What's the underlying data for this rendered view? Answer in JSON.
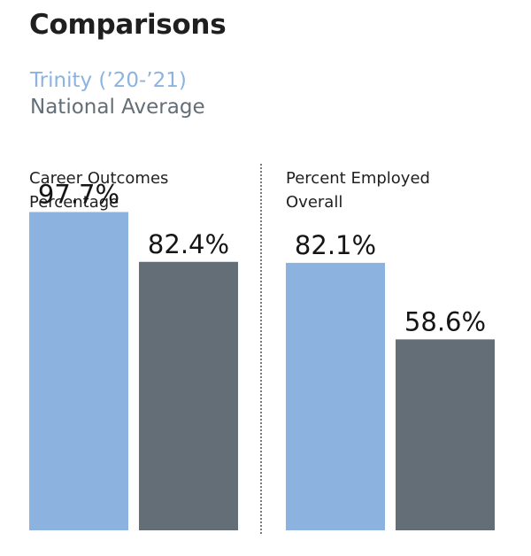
{
  "title": "Comparisons",
  "colors": {
    "trinity": "#8cb3e0",
    "national": "#636e76"
  },
  "chart_data": {
    "type": "bar",
    "title": "Comparisons",
    "legend": [
      {
        "name": "Trinity (’20-’21)",
        "color": "#8cb3e0"
      },
      {
        "name": "National Average",
        "color": "#636e76"
      }
    ],
    "legend_placement": "top-left",
    "grid": false,
    "categories": [
      "Career Outcomes\nPercentage",
      "Percent  Employed\nOverall"
    ],
    "series": [
      {
        "name": "Trinity (’20-’21)",
        "values": [
          97.7,
          82.1
        ],
        "labels": [
          "97.7%",
          "82.1%"
        ]
      },
      {
        "name": "National Average",
        "values": [
          82.4,
          58.6
        ],
        "labels": [
          "82.4%",
          "58.6%"
        ]
      }
    ],
    "ylim": [
      0,
      100
    ]
  }
}
